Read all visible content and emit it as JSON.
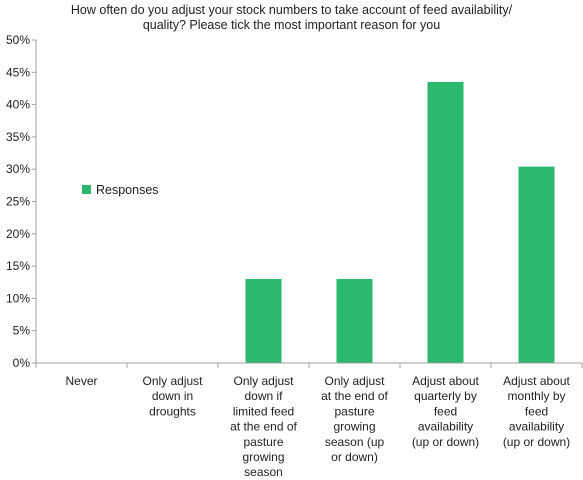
{
  "chart_data": {
    "type": "bar",
    "title_lines": [
      "How often do you adjust your stock numbers to take account of feed availability/",
      "quality? Please tick the most important reason for you"
    ],
    "categories": [
      [
        "Never"
      ],
      [
        "Only adjust",
        "down in",
        "droughts"
      ],
      [
        "Only adjust",
        "down if",
        "limited feed",
        "at the end of",
        "pasture",
        "growing",
        "season"
      ],
      [
        "Only adjust",
        "at the end of",
        "pasture",
        "growing",
        "season (up",
        "or down)"
      ],
      [
        "Adjust about",
        "quarterly by",
        "feed",
        "availability",
        "(up or down)"
      ],
      [
        "Adjust about",
        "monthly by",
        "feed",
        "availability",
        "(up or down)"
      ]
    ],
    "series": [
      {
        "name": "Responses",
        "values": [
          0,
          0,
          13.0,
          13.0,
          43.5,
          30.4
        ]
      }
    ],
    "ylim": [
      0,
      50
    ],
    "yticks": [
      0,
      5,
      10,
      15,
      20,
      25,
      30,
      35,
      40,
      45,
      50
    ],
    "ytick_labels": [
      "0%",
      "5%",
      "10%",
      "15%",
      "20%",
      "25%",
      "30%",
      "35%",
      "40%",
      "45%",
      "50%"
    ],
    "grid": false,
    "legend_position": "center-left",
    "bar_color": "#2db870",
    "axis_color": "#a0a0a0"
  }
}
